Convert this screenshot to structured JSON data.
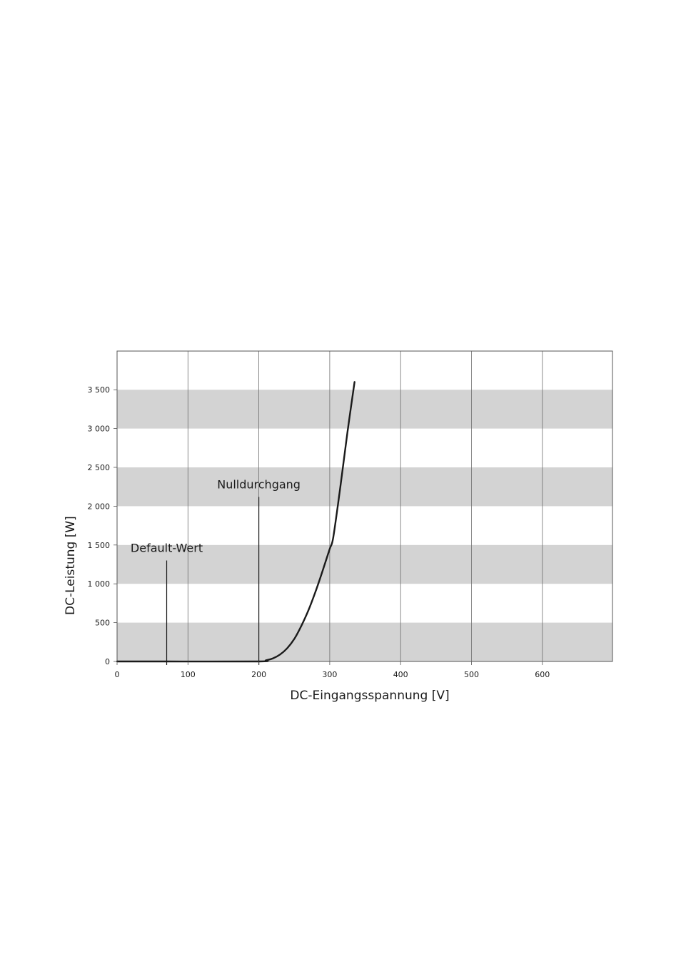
{
  "chart_data": {
    "type": "line",
    "xlabel": "DC-Eingangsspannung [V]",
    "ylabel": "DC-Leistung [W]",
    "xlim": [
      0,
      700
    ],
    "ylim": [
      0,
      4000
    ],
    "x_ticks": [
      0,
      100,
      200,
      300,
      400,
      500,
      600
    ],
    "x_tick_labels": [
      "0",
      "100",
      "200",
      "300",
      "400",
      "500",
      "600"
    ],
    "y_ticks": [
      0,
      500,
      1000,
      1500,
      2000,
      2500,
      3000,
      3500
    ],
    "y_tick_labels": [
      "0",
      "500",
      "1 000",
      "1 500",
      "2 000",
      "2 500",
      "3 000",
      "3 500"
    ],
    "grid": "vertical lines + alternating horizontal bands",
    "legend": "none",
    "series": [
      {
        "x": [
          0,
          70,
          200,
          210,
          220,
          230,
          240,
          250,
          260,
          270,
          280,
          290,
          300,
          305,
          315,
          325,
          335
        ],
        "y": [
          0,
          0,
          0,
          15,
          40,
          90,
          170,
          290,
          460,
          660,
          900,
          1170,
          1450,
          1600,
          2250,
          2950,
          3600
        ]
      }
    ],
    "annotations": [
      {
        "label": "Default-Wert",
        "x": 70,
        "y_top": 1300
      },
      {
        "label": "Nulldurchgang",
        "x": 200,
        "y_top": 2120
      }
    ],
    "colors": {
      "band": "#d3d3d3",
      "grid": "#6e6e6e",
      "curve": "#1a1a1a"
    }
  }
}
